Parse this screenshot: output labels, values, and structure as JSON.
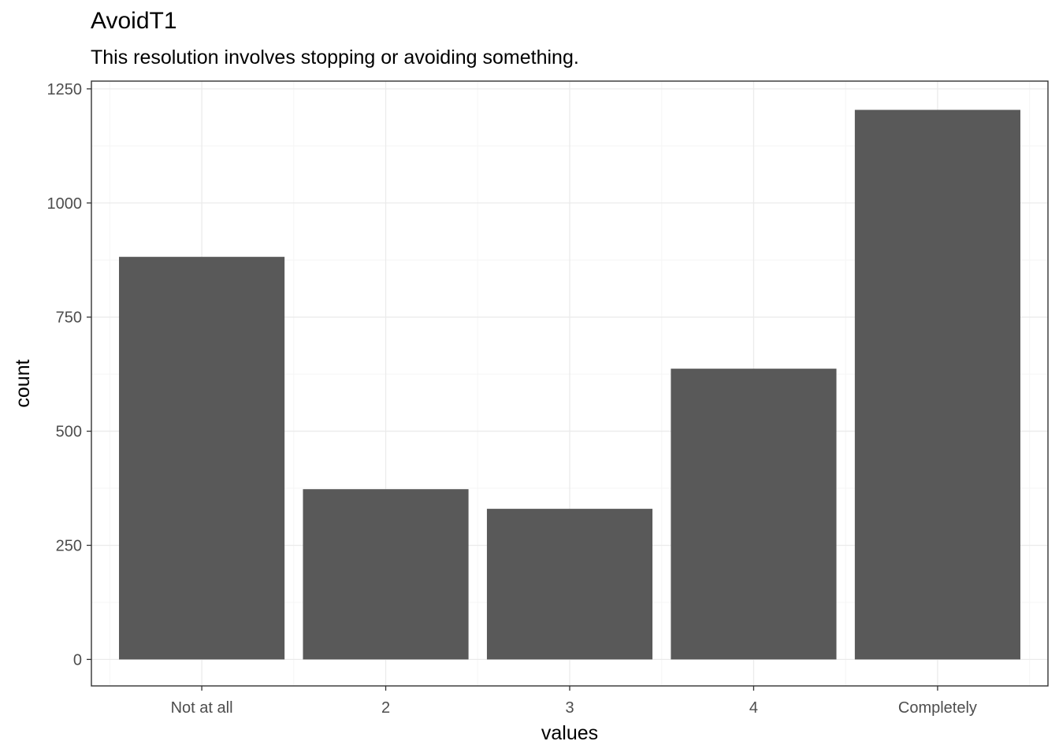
{
  "chart_data": {
    "type": "bar",
    "title": "AvoidT1",
    "subtitle": "This resolution involves stopping or avoiding something.",
    "xlabel": "values",
    "ylabel": "count",
    "categories": [
      "Not at all",
      "2",
      "3",
      "4",
      "Completely"
    ],
    "values": [
      882,
      373,
      330,
      637,
      1204
    ],
    "ylim": [
      -58,
      1267
    ],
    "yticks": [
      0,
      250,
      500,
      750,
      1000,
      1250
    ],
    "ytick_labels": [
      "0",
      "250",
      "500",
      "750",
      "1000",
      "1250"
    ],
    "grid": true,
    "legend": "none",
    "colors": {
      "bar": "#595959",
      "panel_border": "#333333",
      "grid_major": "#ebebeb",
      "grid_minor": "#f5f5f5",
      "tick_text": "#4d4d4d"
    }
  }
}
